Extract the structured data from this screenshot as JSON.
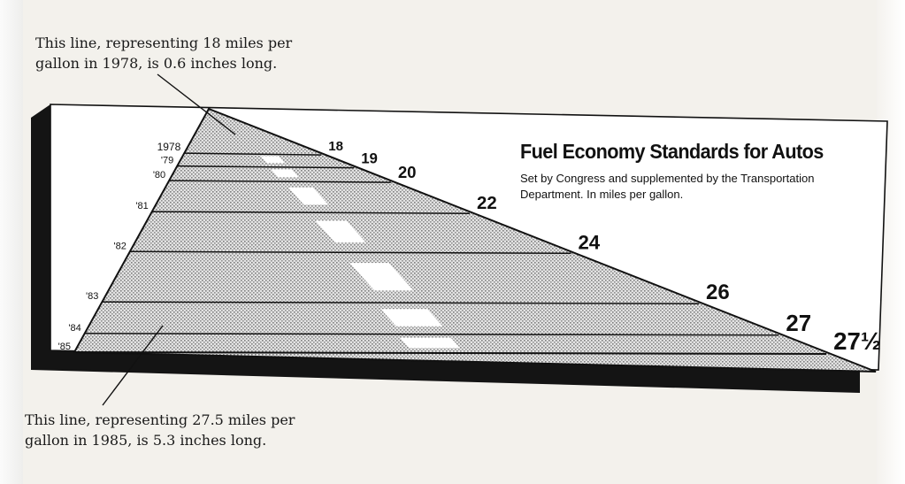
{
  "notes": {
    "top": "This line, representing 18 miles per gallon in 1978, is 0.6 inches long.",
    "bottom": "This line, representing 27.5 miles per gallon in 1985, is 5.3 inches long."
  },
  "chart_data": {
    "type": "line",
    "title": "Fuel Economy Standards for Autos",
    "subtitle": "Set by Congress and supplemented by the Transportation Department. In miles per gallon.",
    "x": [
      "1978",
      "'79",
      "'80",
      "'81",
      "'82",
      "'83",
      "'84",
      "'85"
    ],
    "values": [
      18,
      19,
      20,
      22,
      24,
      26,
      27,
      27.5
    ],
    "value_labels": [
      "18",
      "19",
      "20",
      "22",
      "24",
      "26",
      "27",
      "27½"
    ],
    "ylim": [
      18,
      27.5
    ],
    "grid": false,
    "colors": {
      "ink": "#111111",
      "stipple": "#b7b7b7",
      "dash": "#ffffff",
      "shadow": "#141414"
    }
  }
}
